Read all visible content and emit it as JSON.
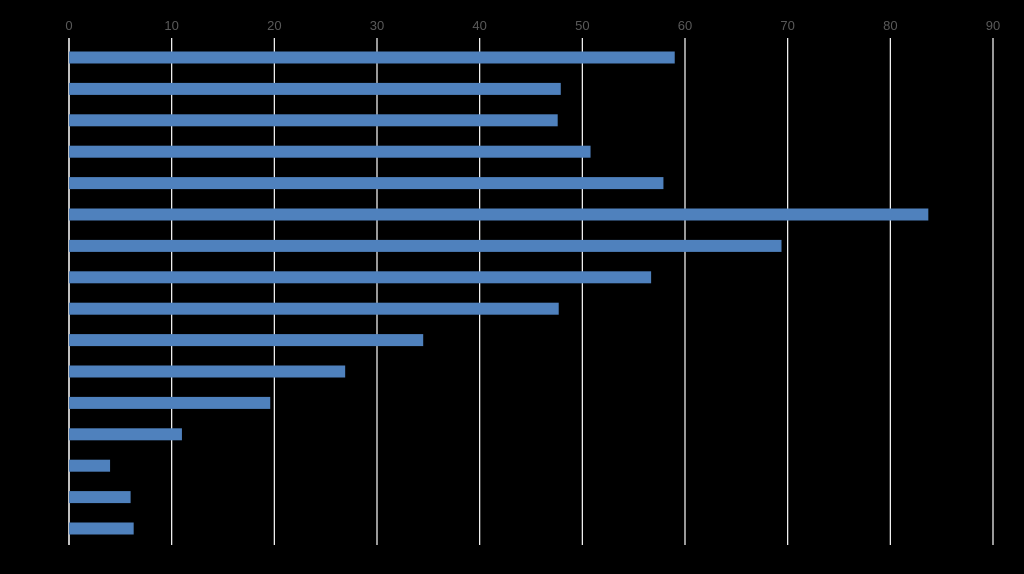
{
  "chart_data": {
    "type": "bar",
    "orientation": "horizontal",
    "title": "",
    "xlabel": "",
    "ylabel": "",
    "xlim": [
      0,
      90
    ],
    "xticks": [
      "0",
      "10",
      "20",
      "30",
      "40",
      "50",
      "60",
      "70",
      "80",
      "90"
    ],
    "x_axis_position": "top",
    "grid": "vertical",
    "series": [
      {
        "values": [
          59.0,
          47.9,
          47.6,
          50.8,
          57.9,
          83.7,
          69.4,
          56.7,
          47.7,
          34.5,
          26.9,
          19.6,
          11.0,
          4.0,
          6.0,
          6.3
        ]
      }
    ],
    "colors": {
      "background": "#000000",
      "bar": "#4F81BD",
      "grid": "#FFFFFF",
      "tick_label": "#595959"
    }
  }
}
